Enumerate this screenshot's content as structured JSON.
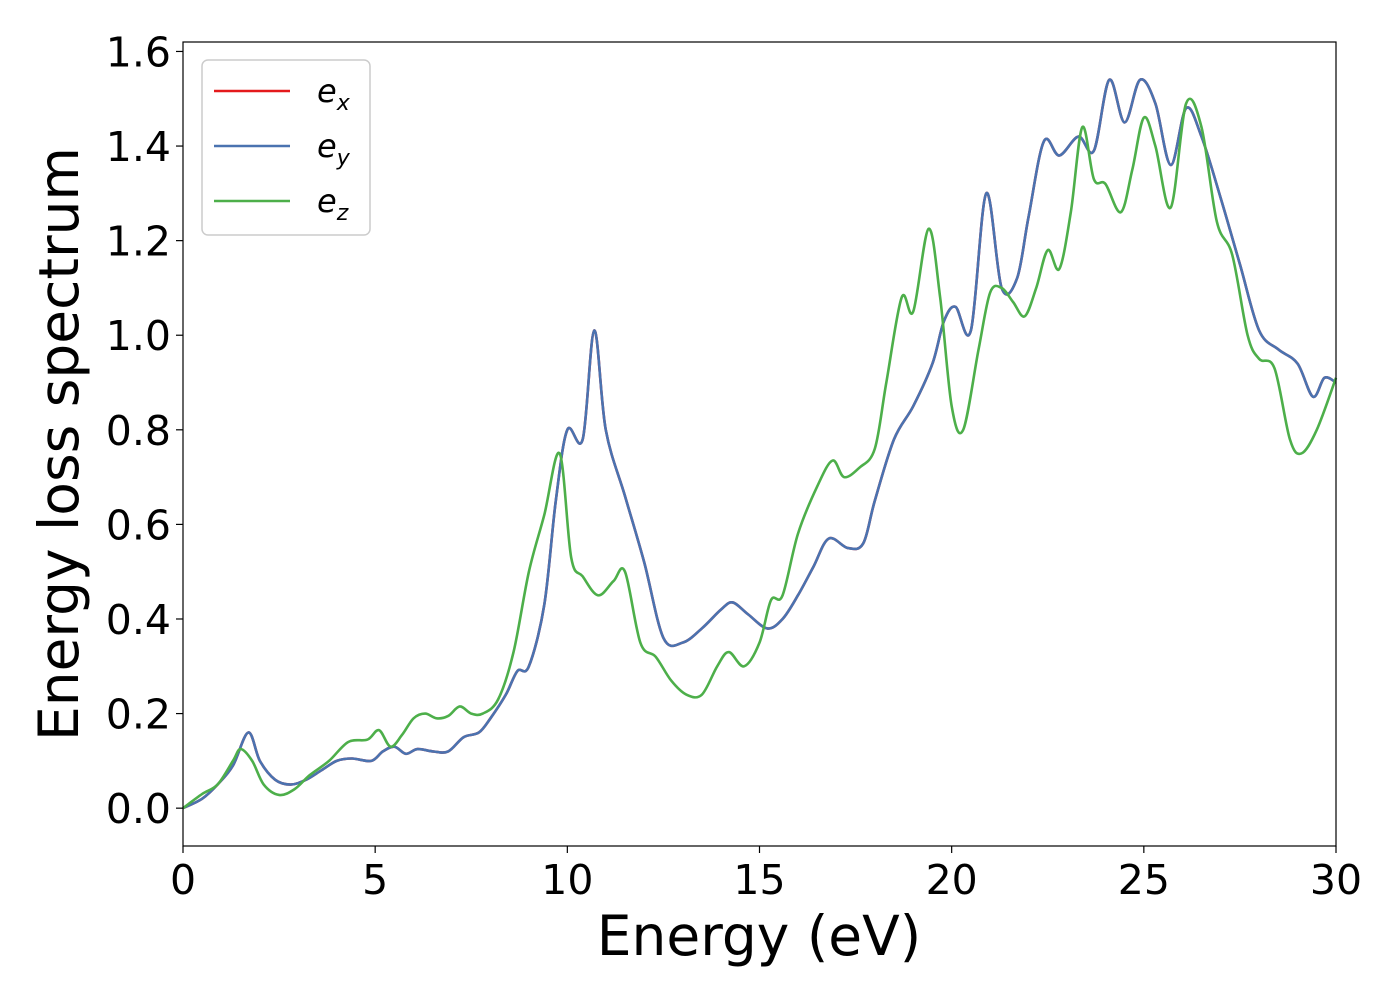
{
  "chart_data": {
    "type": "line",
    "title": "",
    "xlabel": "Energy (eV)",
    "ylabel": "Energy loss spectrum",
    "xlim": [
      0,
      30
    ],
    "ylim": [
      -0.08,
      1.62
    ],
    "xticks": [
      0,
      5,
      10,
      15,
      20,
      25,
      30
    ],
    "xtick_labels": [
      "0",
      "5",
      "10",
      "15",
      "20",
      "25",
      "30"
    ],
    "yticks": [
      0.0,
      0.2,
      0.4,
      0.6,
      0.8,
      1.0,
      1.2,
      1.4,
      1.6
    ],
    "ytick_labels": [
      "0.0",
      "0.2",
      "0.4",
      "0.6",
      "0.8",
      "1.0",
      "1.2",
      "1.4",
      "1.6"
    ],
    "grid": false,
    "legend_position": "top-left",
    "series": [
      {
        "name": "e",
        "sub": "x",
        "color": "#e41a1c",
        "x": [
          0,
          0.5,
          0.9,
          1.3,
          1.7,
          2.0,
          2.4,
          2.8,
          3.2,
          3.6,
          4.0,
          4.4,
          4.9,
          5.2,
          5.5,
          5.8,
          6.1,
          6.5,
          6.9,
          7.3,
          7.7,
          8.0,
          8.4,
          8.7,
          9.0,
          9.4,
          9.7,
          10.0,
          10.4,
          10.7,
          11.0,
          11.5,
          12.0,
          12.5,
          13.0,
          13.5,
          14.0,
          14.3,
          14.7,
          15.2,
          15.6,
          16.0,
          16.4,
          16.8,
          17.3,
          17.7,
          18.0,
          18.5,
          19.0,
          19.5,
          19.8,
          20.1,
          20.5,
          20.9,
          21.3,
          21.7,
          22.0,
          22.4,
          22.8,
          23.3,
          23.7,
          24.1,
          24.5,
          24.9,
          25.3,
          25.7,
          26.1,
          26.5,
          27.0,
          27.5,
          28.0,
          28.5,
          29.0,
          29.4,
          29.7,
          30.0
        ],
        "y": [
          0.0,
          0.02,
          0.05,
          0.09,
          0.16,
          0.1,
          0.06,
          0.05,
          0.06,
          0.08,
          0.1,
          0.105,
          0.1,
          0.12,
          0.13,
          0.115,
          0.125,
          0.12,
          0.12,
          0.15,
          0.16,
          0.19,
          0.24,
          0.29,
          0.3,
          0.43,
          0.65,
          0.8,
          0.78,
          1.01,
          0.8,
          0.66,
          0.52,
          0.36,
          0.35,
          0.38,
          0.42,
          0.435,
          0.41,
          0.38,
          0.4,
          0.45,
          0.51,
          0.57,
          0.55,
          0.56,
          0.65,
          0.78,
          0.85,
          0.94,
          1.03,
          1.06,
          1.01,
          1.3,
          1.1,
          1.12,
          1.25,
          1.41,
          1.38,
          1.42,
          1.39,
          1.54,
          1.45,
          1.54,
          1.49,
          1.36,
          1.48,
          1.42,
          1.29,
          1.15,
          1.01,
          0.97,
          0.94,
          0.87,
          0.91,
          0.9
        ]
      },
      {
        "name": "e",
        "sub": "y",
        "color": "#4a73b0",
        "x": [
          0,
          0.5,
          0.9,
          1.3,
          1.7,
          2.0,
          2.4,
          2.8,
          3.2,
          3.6,
          4.0,
          4.4,
          4.9,
          5.2,
          5.5,
          5.8,
          6.1,
          6.5,
          6.9,
          7.3,
          7.7,
          8.0,
          8.4,
          8.7,
          9.0,
          9.4,
          9.7,
          10.0,
          10.4,
          10.7,
          11.0,
          11.5,
          12.0,
          12.5,
          13.0,
          13.5,
          14.0,
          14.3,
          14.7,
          15.2,
          15.6,
          16.0,
          16.4,
          16.8,
          17.3,
          17.7,
          18.0,
          18.5,
          19.0,
          19.5,
          19.8,
          20.1,
          20.5,
          20.9,
          21.3,
          21.7,
          22.0,
          22.4,
          22.8,
          23.3,
          23.7,
          24.1,
          24.5,
          24.9,
          25.3,
          25.7,
          26.1,
          26.5,
          27.0,
          27.5,
          28.0,
          28.5,
          29.0,
          29.4,
          29.7,
          30.0
        ],
        "y": [
          0.0,
          0.02,
          0.05,
          0.09,
          0.16,
          0.1,
          0.06,
          0.05,
          0.06,
          0.08,
          0.1,
          0.105,
          0.1,
          0.12,
          0.13,
          0.115,
          0.125,
          0.12,
          0.12,
          0.15,
          0.16,
          0.19,
          0.24,
          0.29,
          0.3,
          0.43,
          0.65,
          0.8,
          0.78,
          1.01,
          0.8,
          0.66,
          0.52,
          0.36,
          0.35,
          0.38,
          0.42,
          0.435,
          0.41,
          0.38,
          0.4,
          0.45,
          0.51,
          0.57,
          0.55,
          0.56,
          0.65,
          0.78,
          0.85,
          0.94,
          1.03,
          1.06,
          1.01,
          1.3,
          1.1,
          1.12,
          1.25,
          1.41,
          1.38,
          1.42,
          1.39,
          1.54,
          1.45,
          1.54,
          1.49,
          1.36,
          1.48,
          1.42,
          1.29,
          1.15,
          1.01,
          0.97,
          0.94,
          0.87,
          0.91,
          0.9
        ]
      },
      {
        "name": "e",
        "sub": "z",
        "color": "#4daf4a",
        "x": [
          0,
          0.5,
          0.9,
          1.3,
          1.5,
          1.8,
          2.1,
          2.5,
          2.9,
          3.3,
          3.8,
          4.3,
          4.8,
          5.1,
          5.4,
          5.7,
          6.0,
          6.3,
          6.6,
          6.9,
          7.2,
          7.5,
          7.8,
          8.2,
          8.6,
          9.0,
          9.4,
          9.8,
          10.1,
          10.4,
          10.8,
          11.2,
          11.5,
          11.9,
          12.3,
          12.7,
          13.1,
          13.5,
          13.9,
          14.2,
          14.6,
          15.0,
          15.3,
          15.6,
          16.0,
          16.5,
          16.9,
          17.2,
          17.6,
          18.0,
          18.3,
          18.7,
          19.0,
          19.4,
          19.7,
          20.0,
          20.3,
          20.7,
          21.0,
          21.3,
          21.6,
          21.9,
          22.2,
          22.5,
          22.8,
          23.1,
          23.4,
          23.7,
          24.0,
          24.4,
          24.7,
          25.0,
          25.3,
          25.7,
          26.1,
          26.5,
          26.9,
          27.3,
          27.7,
          28.0,
          28.4,
          28.8,
          29.1,
          29.5,
          30.0
        ],
        "y": [
          0.0,
          0.03,
          0.05,
          0.1,
          0.125,
          0.1,
          0.05,
          0.028,
          0.04,
          0.07,
          0.1,
          0.14,
          0.145,
          0.165,
          0.13,
          0.155,
          0.19,
          0.2,
          0.19,
          0.195,
          0.215,
          0.2,
          0.2,
          0.23,
          0.33,
          0.5,
          0.62,
          0.75,
          0.53,
          0.49,
          0.45,
          0.48,
          0.5,
          0.35,
          0.32,
          0.27,
          0.24,
          0.24,
          0.3,
          0.33,
          0.3,
          0.35,
          0.44,
          0.45,
          0.58,
          0.68,
          0.735,
          0.7,
          0.72,
          0.76,
          0.9,
          1.08,
          1.05,
          1.225,
          1.08,
          0.85,
          0.8,
          0.97,
          1.09,
          1.1,
          1.07,
          1.04,
          1.1,
          1.18,
          1.14,
          1.26,
          1.44,
          1.33,
          1.32,
          1.26,
          1.35,
          1.46,
          1.4,
          1.27,
          1.49,
          1.44,
          1.24,
          1.17,
          1.0,
          0.95,
          0.93,
          0.78,
          0.75,
          0.8,
          0.91
        ]
      }
    ]
  }
}
